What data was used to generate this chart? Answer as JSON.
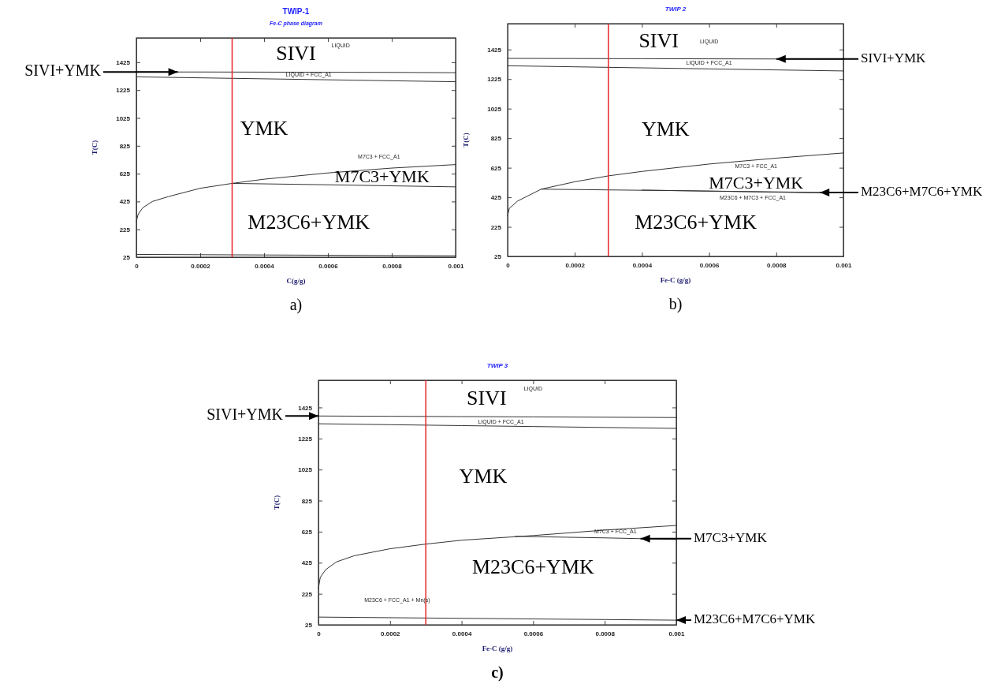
{
  "chart_data": [
    {
      "type": "line",
      "title": "TWIP-1",
      "subtitle": "Fe-C phase diagram",
      "xlabel": "C(g/g)",
      "ylabel": "T(C)",
      "xlim": [
        0,
        0.001
      ],
      "ylim": [
        25,
        1600
      ],
      "xticks": [
        0,
        0.0002,
        0.0004,
        0.0006,
        0.0008,
        0.001
      ],
      "yticks": [
        25,
        225,
        425,
        625,
        825,
        1025,
        1225,
        1425
      ],
      "grid": false,
      "series": [
        {
          "color": "#333333",
          "x": [
            0,
            0.0002,
            0.0004,
            0.0006,
            0.0008,
            0.001
          ],
          "values": [
            1355,
            1355,
            1354,
            1353,
            1352,
            1350
          ]
        },
        {
          "color": "#333333",
          "x": [
            0,
            0.0002,
            0.0004,
            0.0006,
            0.0008,
            0.001
          ],
          "values": [
            1320,
            1313,
            1306,
            1299,
            1292,
            1285
          ]
        },
        {
          "color": "#333333",
          "x": [
            0,
            5e-06,
            2e-05,
            5e-05,
            0.0001,
            0.0002,
            0.0003,
            0.0004,
            0.0006,
            0.0008,
            0.001
          ],
          "values": [
            280,
            330,
            380,
            425,
            460,
            520,
            555,
            585,
            630,
            665,
            690
          ]
        },
        {
          "color": "#333333",
          "x": [
            0.0003,
            0.0006,
            0.001
          ],
          "values": [
            555,
            545,
            530
          ]
        },
        {
          "color": "#333333",
          "x": [
            0,
            0.0005,
            0.001
          ],
          "values": [
            45,
            40,
            35
          ]
        }
      ],
      "ref_lines": [
        {
          "axis": "x",
          "value": 0.0003,
          "color": "#e8262a"
        }
      ],
      "annotations": [
        "SIVI",
        "LIQUID",
        "LIQUID + FCC_A1",
        "YMK",
        "M7C3 + FCC_A1",
        "M7C3+YMK",
        "M23C6+YMK",
        {
          "text": "SIVI+YMK",
          "x": 0.00013,
          "y": 1355
        },
        "a)"
      ]
    },
    {
      "type": "line",
      "title": "TWIP 2",
      "xlabel": "Fe-C (g/g)",
      "ylabel": "T(C)",
      "xlim": [
        0,
        0.001
      ],
      "ylim": [
        25,
        1600
      ],
      "xticks": [
        0,
        0.0002,
        0.0004,
        0.0006,
        0.0008,
        0.001
      ],
      "yticks": [
        25,
        225,
        425,
        625,
        825,
        1025,
        1225,
        1425
      ],
      "grid": false,
      "series": [
        {
          "color": "#333333",
          "x": [
            0,
            0.0002,
            0.0004,
            0.0006,
            0.0008,
            0.001
          ],
          "values": [
            1365,
            1364,
            1363,
            1362,
            1361,
            1360
          ]
        },
        {
          "color": "#333333",
          "x": [
            0,
            0.0002,
            0.0004,
            0.0006,
            0.0008,
            0.001
          ],
          "values": [
            1315,
            1308,
            1301,
            1294,
            1287,
            1280
          ]
        },
        {
          "color": "#333333",
          "x": [
            0,
            5e-06,
            3e-05,
            0.0001,
            0.0002,
            0.0003,
            0.0004,
            0.0006,
            0.0008,
            0.001
          ],
          "values": [
            300,
            350,
            400,
            480,
            530,
            570,
            600,
            650,
            690,
            725
          ]
        },
        {
          "color": "#333333",
          "x": [
            0.0001,
            0.0005,
            0.00093
          ],
          "values": [
            480,
            470,
            458
          ]
        },
        {
          "color": "#333333",
          "x": [
            0.0004,
            0.00093
          ],
          "values": [
            474,
            455
          ]
        }
      ],
      "ref_lines": [
        {
          "axis": "x",
          "value": 0.0003,
          "color": "#e8262a"
        }
      ],
      "annotations": [
        "SIVI",
        "LIQUID",
        "LIQUID + FCC_A1",
        "YMK",
        "M7C3 + FCC_A1",
        "M7C3+YMK",
        "M23C6 + M7C3 + FCC_A1",
        "M23C6+YMK",
        {
          "text": "SIVI+YMK",
          "x": 0.0008,
          "y": 1361
        },
        {
          "text": "M23C6+M7C6+YMK",
          "x": 0.00093,
          "y": 458
        },
        "b)"
      ]
    },
    {
      "type": "line",
      "title": "TWIP 3",
      "xlabel": "Fe-C (g/g)",
      "ylabel": "T(C)",
      "xlim": [
        0,
        0.001
      ],
      "ylim": [
        25,
        1600
      ],
      "xticks": [
        0,
        0.0002,
        0.0004,
        0.0006,
        0.0008,
        0.001
      ],
      "yticks": [
        25,
        225,
        425,
        625,
        825,
        1025,
        1225,
        1425
      ],
      "grid": false,
      "series": [
        {
          "color": "#333333",
          "x": [
            0,
            0.0002,
            0.0004,
            0.0006,
            0.0008,
            0.001
          ],
          "values": [
            1370,
            1368,
            1366,
            1364,
            1362,
            1360
          ]
        },
        {
          "color": "#333333",
          "x": [
            0,
            0.0002,
            0.0004,
            0.0006,
            0.0008,
            0.001
          ],
          "values": [
            1320,
            1314,
            1308,
            1302,
            1296,
            1290
          ]
        },
        {
          "color": "#333333",
          "x": [
            0,
            5e-06,
            2e-05,
            5e-05,
            0.0001,
            0.0002,
            0.0003,
            0.0004,
            0.0006,
            0.0008,
            0.001
          ],
          "values": [
            260,
            330,
            380,
            430,
            470,
            515,
            545,
            570,
            600,
            635,
            665
          ]
        },
        {
          "color": "#333333",
          "x": [
            0.00055,
            0.0008,
            0.001
          ],
          "values": [
            595,
            585,
            575
          ]
        },
        {
          "color": "#333333",
          "x": [
            0,
            0.0005,
            0.001
          ],
          "values": [
            75,
            65,
            55
          ]
        }
      ],
      "ref_lines": [
        {
          "axis": "x",
          "value": 0.0003,
          "color": "#e8262a"
        }
      ],
      "annotations": [
        "SIVI",
        "LIQUID",
        "LIQUID + FCC_A1",
        "YMK",
        "M7C3 + FCC_A1",
        "M23C6+YMK",
        "M23C6 + FCC_A1 + Mn(s)",
        {
          "text": "SIVI+YMK",
          "x": 0,
          "y": 1370
        },
        {
          "text": "M7C3+YMK",
          "x": 0.0009,
          "y": 580
        },
        {
          "text": "M23C6+M7C6+YMK",
          "x": 0.001,
          "y": 55
        },
        "c)"
      ]
    }
  ]
}
